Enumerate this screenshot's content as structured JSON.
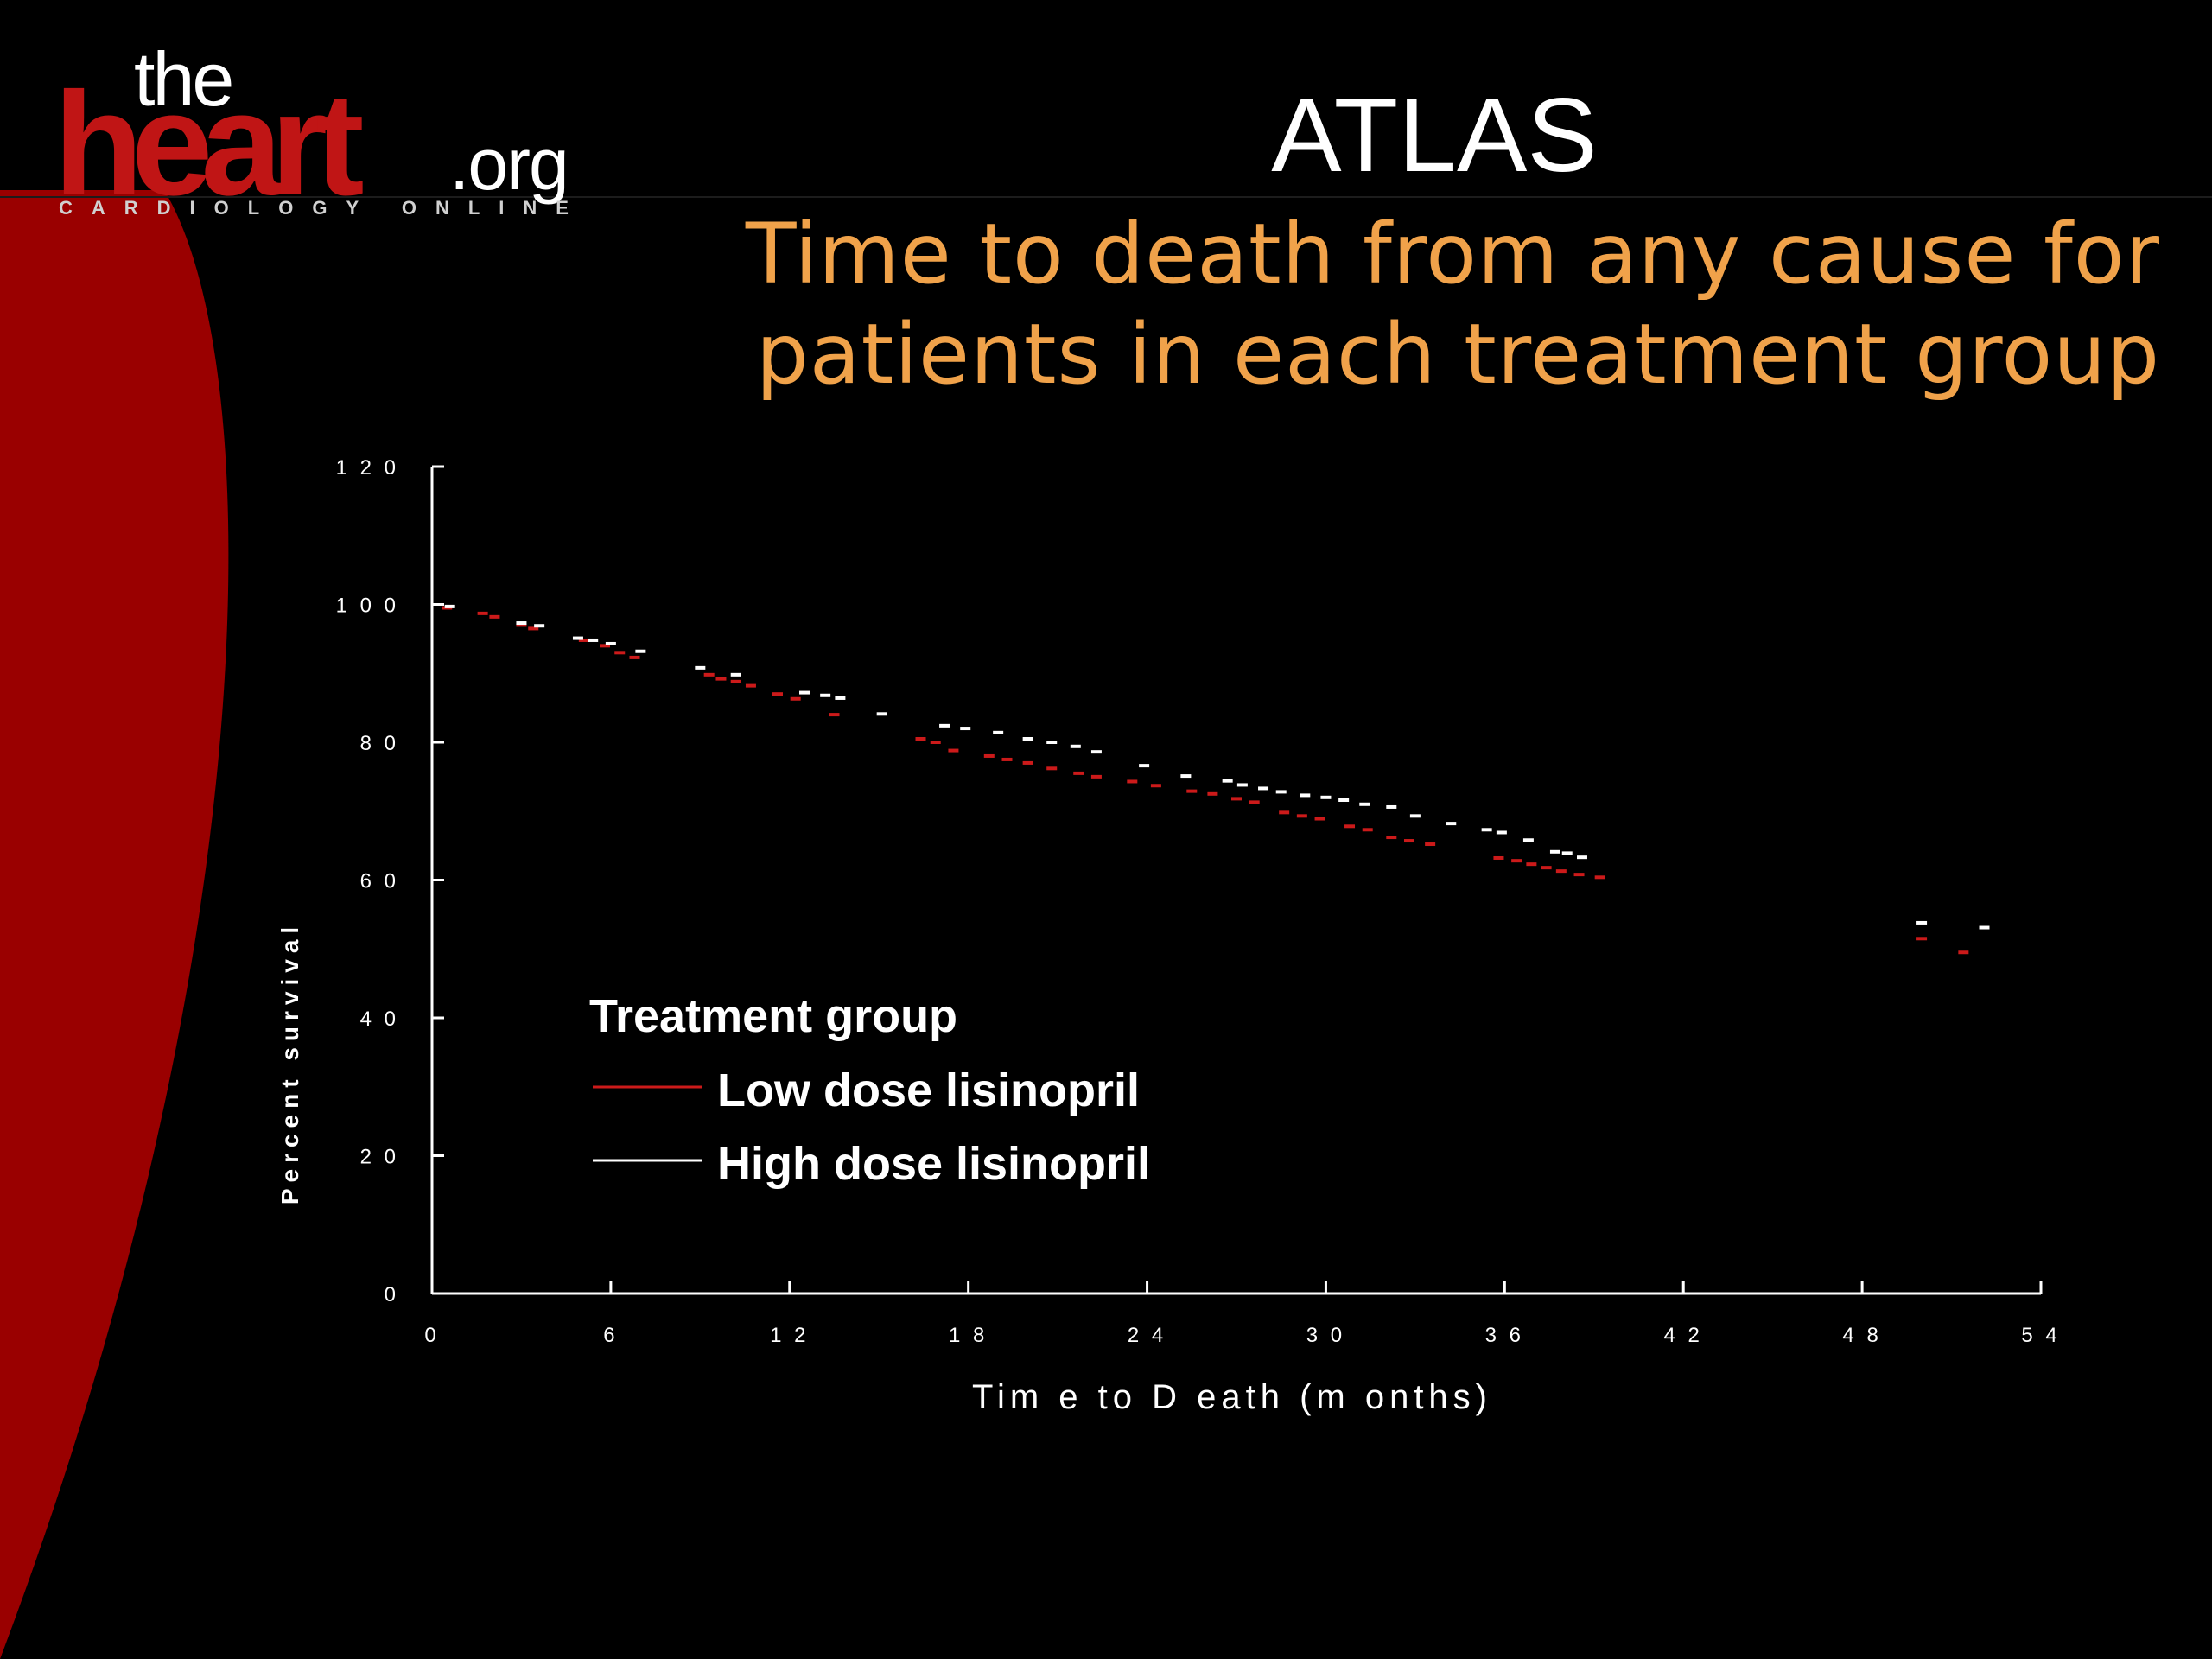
{
  "logo": {
    "the": "the",
    "heart": "heart",
    "org": ".org",
    "tagline": "CARDIOLOGY ONLINE"
  },
  "slide": {
    "title": "ATLAS",
    "subtitle_line1": "Time to death from any cause for",
    "subtitle_line2": "patients in each treatment group"
  },
  "colors": {
    "background": "#000000",
    "accent_red": "#9a0000",
    "subtitle": "#f0a24a",
    "low_dose": "#cc1a1a",
    "high_dose": "#ffffff"
  },
  "chart_data": {
    "type": "line",
    "title": "",
    "xlabel": "Tim e  to  D eath  (m onths)",
    "ylabel": "Percent survival",
    "xlim": [
      0,
      54
    ],
    "ylim": [
      0,
      120
    ],
    "xticks": [
      0,
      6,
      12,
      18,
      24,
      30,
      36,
      42,
      48,
      54
    ],
    "xtick_labels": [
      "0",
      "6",
      "1 2",
      "1 8",
      "2 4",
      "3 0",
      "3 6",
      "4 2",
      "4 8",
      "5 4"
    ],
    "yticks": [
      0,
      20,
      40,
      60,
      80,
      100,
      120
    ],
    "ytick_labels": [
      "0",
      "2 0",
      "4 0",
      "6 0",
      "8 0",
      "1 0 0",
      "1 2 0"
    ],
    "grid": false,
    "legend": {
      "title": "Treatment group",
      "placement": "lower-left"
    },
    "series": [
      {
        "name": "Low dose lisinopril",
        "color": "#cc1a1a",
        "x": [
          0.5,
          1.7,
          2.1,
          3.0,
          3.4,
          5.1,
          5.8,
          6.3,
          6.8,
          9.3,
          9.7,
          10.2,
          10.7,
          11.6,
          12.2,
          13.5,
          16.4,
          16.9,
          17.5,
          18.7,
          19.3,
          20.0,
          20.8,
          21.7,
          22.3,
          23.5,
          24.3,
          25.5,
          26.2,
          27.0,
          27.6,
          28.6,
          29.2,
          29.8,
          30.8,
          31.4,
          32.2,
          32.8,
          33.5,
          35.8,
          36.4,
          36.9,
          37.4,
          37.9,
          38.5,
          39.2,
          50.0,
          51.4
        ],
        "y": [
          99.5,
          98.7,
          98.2,
          97.0,
          96.5,
          94.8,
          94.0,
          93.0,
          92.3,
          89.8,
          89.2,
          88.8,
          88.2,
          87.0,
          86.3,
          84.0,
          80.5,
          80.0,
          78.8,
          78.0,
          77.5,
          77.0,
          76.2,
          75.5,
          75.0,
          74.3,
          73.7,
          72.9,
          72.5,
          71.8,
          71.3,
          69.8,
          69.3,
          68.9,
          67.8,
          67.3,
          66.2,
          65.7,
          65.2,
          63.2,
          62.8,
          62.3,
          61.8,
          61.3,
          60.8,
          60.4,
          51.5,
          49.5
        ]
      },
      {
        "name": "High dose lisinopril",
        "color": "#ffffff",
        "x": [
          0.6,
          3.0,
          3.6,
          4.9,
          5.4,
          6.0,
          7.0,
          9.0,
          10.2,
          12.5,
          13.2,
          13.7,
          15.1,
          17.2,
          17.9,
          19.0,
          20.0,
          20.8,
          21.6,
          22.3,
          23.9,
          25.3,
          26.7,
          27.2,
          27.9,
          28.5,
          29.3,
          30.0,
          30.6,
          31.3,
          32.2,
          33.0,
          34.2,
          35.4,
          35.9,
          36.8,
          37.7,
          38.1,
          38.6,
          50.0,
          52.1
        ],
        "y": [
          99.7,
          97.3,
          96.9,
          95.1,
          94.8,
          94.3,
          93.2,
          90.8,
          89.8,
          87.2,
          86.8,
          86.4,
          84.1,
          82.4,
          82.0,
          81.4,
          80.5,
          80.0,
          79.4,
          78.6,
          76.6,
          75.1,
          74.4,
          73.8,
          73.3,
          72.8,
          72.3,
          72.0,
          71.6,
          71.0,
          70.6,
          69.3,
          68.2,
          67.3,
          66.9,
          65.8,
          64.1,
          63.9,
          63.3,
          53.8,
          53.1
        ]
      }
    ]
  }
}
